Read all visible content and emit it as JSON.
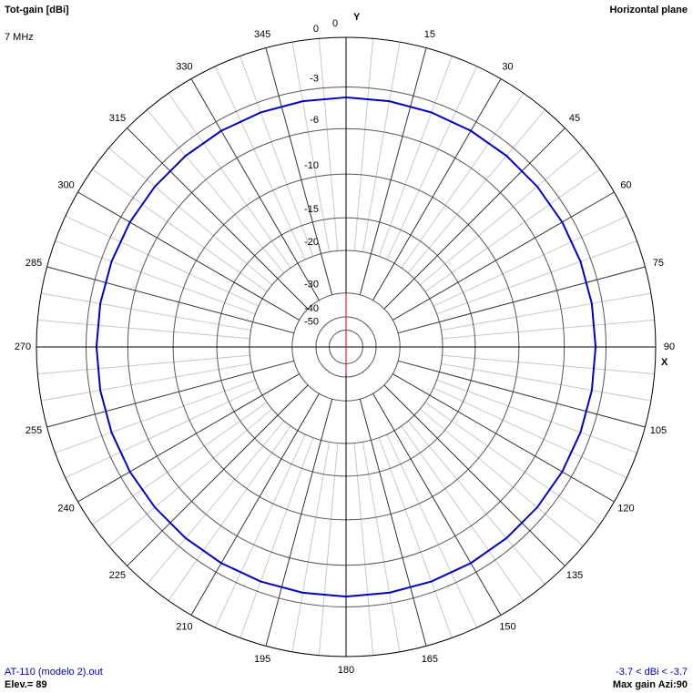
{
  "chart_data": {
    "type": "polar",
    "title": "Tot-gain [dBi]",
    "subtitle": "7 MHz",
    "plane": "Horizontal plane",
    "x_axis_label": "X",
    "y_axis_label": "Y",
    "radial_scale": "arrl",
    "xticks": [
      0,
      15,
      30,
      45,
      60,
      75,
      90,
      105,
      120,
      135,
      150,
      165,
      180,
      195,
      210,
      225,
      240,
      255,
      270,
      285,
      300,
      315,
      330,
      345
    ],
    "yticks": [
      0,
      -3,
      -6,
      -10,
      -15,
      -20,
      -30,
      -40,
      -50
    ],
    "x": [
      0,
      10,
      20,
      30,
      40,
      50,
      60,
      70,
      80,
      90,
      100,
      110,
      120,
      130,
      140,
      150,
      160,
      170,
      180,
      190,
      200,
      210,
      220,
      230,
      240,
      250,
      260,
      270,
      280,
      290,
      300,
      310,
      320,
      330,
      340,
      350,
      360
    ],
    "series": [
      {
        "name": "AT-110 (modelo 2).out",
        "color": "#0000c0",
        "values": [
          -3.7,
          -3.7,
          -3.7,
          -3.7,
          -3.7,
          -3.7,
          -3.7,
          -3.7,
          -3.7,
          -3.7,
          -3.7,
          -3.7,
          -3.7,
          -3.7,
          -3.7,
          -3.7,
          -3.7,
          -3.7,
          -3.7,
          -3.7,
          -3.7,
          -3.7,
          -3.7,
          -3.7,
          -3.7,
          -3.7,
          -3.7,
          -3.7,
          -3.7,
          -3.7,
          -3.7,
          -3.7,
          -3.7,
          -3.7,
          -3.7,
          -3.7,
          -3.7
        ]
      }
    ],
    "elevation_label": "Elev.= 89",
    "range_label": "-3.7 < dBi < -3.7",
    "max_gain_label": "Max gain Azi:90"
  }
}
